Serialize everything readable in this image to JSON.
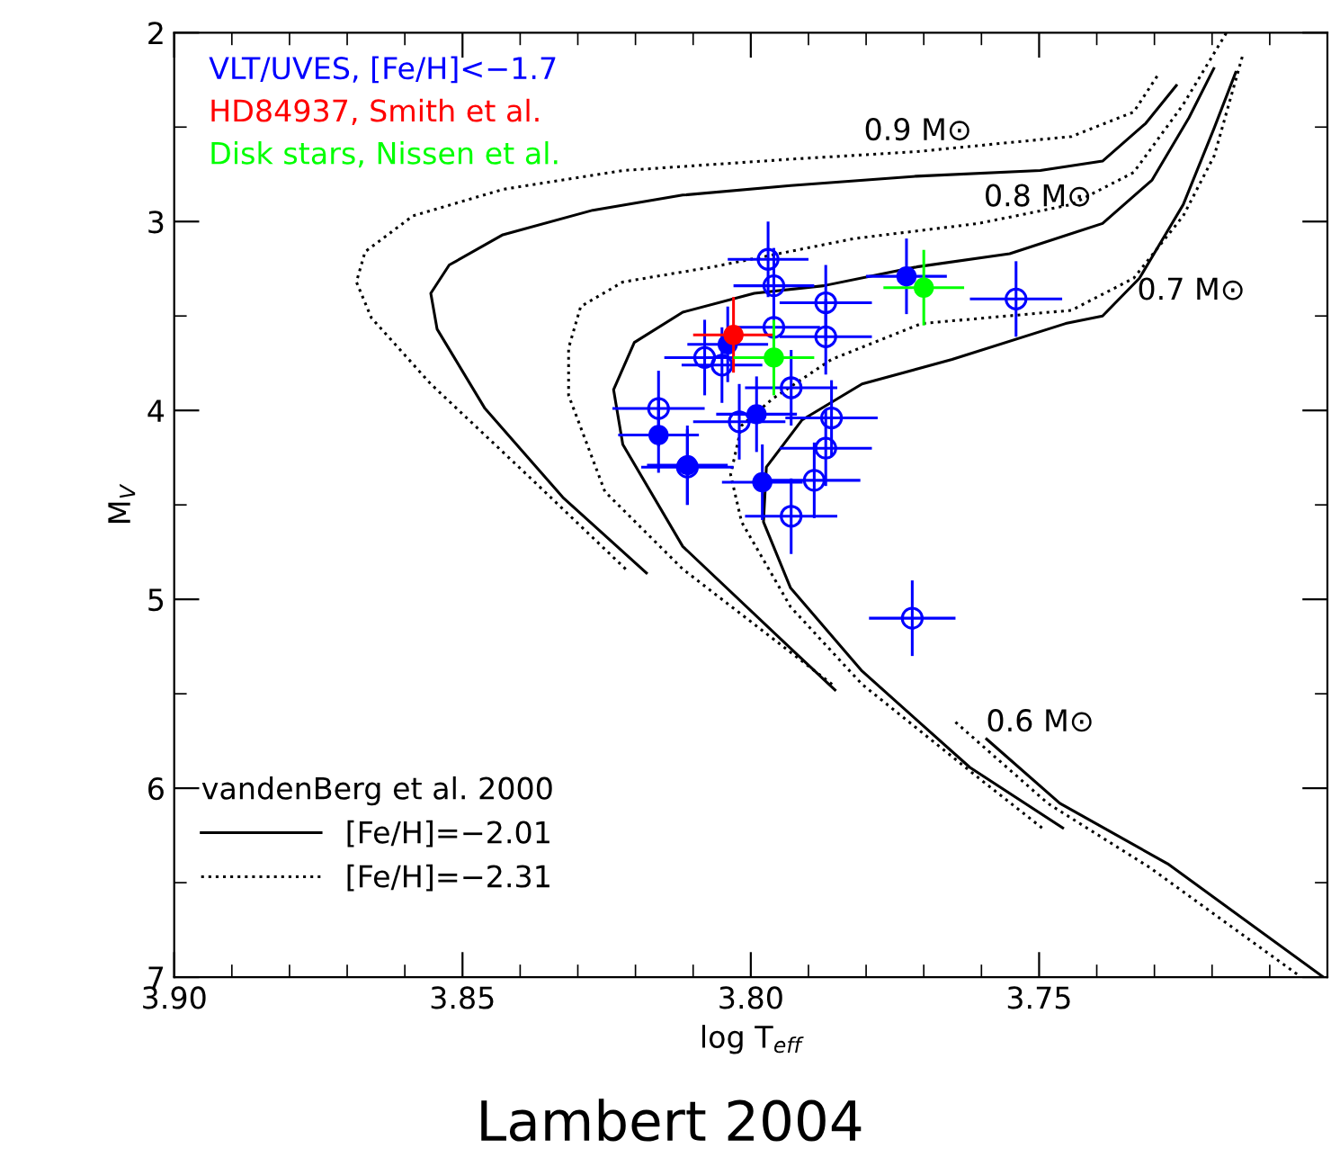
{
  "chart_data": {
    "type": "scatter",
    "xlabel": "log T$_{eff}$",
    "ylabel": "M$_{V}$",
    "xlim": [
      3.9,
      3.7
    ],
    "ylim": [
      7,
      2
    ],
    "xticks": [
      {
        "value": 3.9,
        "label": "3.90"
      },
      {
        "value": 3.85,
        "label": "3.85"
      },
      {
        "value": 3.8,
        "label": "3.80"
      },
      {
        "value": 3.75,
        "label": "3.75"
      }
    ],
    "yticks": [
      2,
      3,
      4,
      5,
      6,
      7
    ],
    "legend": "bottom left",
    "legend_title": "vandenBerg et al. 2000",
    "annotations": [
      "0.9 M⊙",
      "0.8 M⊙",
      "0.7 M⊙",
      "0.6 M⊙",
      "Lambert 2004"
    ],
    "series": [
      {
        "type": "line",
        "name": "[Fe/H]=−2.01",
        "color": "#000000",
        "line_style": "solid",
        "x": [
          3.8181,
          3.8326,
          3.8461,
          3.8544,
          3.8555,
          3.8523,
          3.843,
          3.8274,
          3.8118,
          3.7931,
          3.7713,
          3.7498,
          3.739,
          3.7315,
          3.7262,
          null,
          3.7854,
          3.7931,
          3.8118,
          3.8222,
          3.8238,
          3.8202,
          3.8118,
          3.7994,
          3.7874,
          3.7712,
          3.7551,
          3.739,
          3.7304,
          3.724,
          3.7197,
          null,
          3.7459,
          3.762,
          3.7807,
          3.7931,
          3.7978,
          3.7973,
          3.7911,
          3.7807,
          3.7651,
          3.7454,
          3.739,
          3.7326,
          3.725,
          3.7197,
          3.7159,
          null,
          3.7591,
          3.7464,
          3.7277,
          3.7007
        ],
        "values": [
          4.86,
          4.46,
          3.99,
          3.57,
          3.38,
          3.23,
          3.07,
          2.94,
          2.86,
          2.81,
          2.76,
          2.73,
          2.68,
          2.48,
          2.28,
          null,
          5.48,
          5.26,
          4.72,
          4.18,
          3.89,
          3.64,
          3.48,
          3.38,
          3.34,
          3.24,
          3.17,
          3.01,
          2.78,
          2.45,
          2.19,
          null,
          6.21,
          5.89,
          5.38,
          4.94,
          4.59,
          4.3,
          4.05,
          3.86,
          3.73,
          3.54,
          3.5,
          3.3,
          2.91,
          2.51,
          2.21,
          null,
          5.74,
          6.08,
          6.4,
          7.0
        ]
      },
      {
        "type": "line",
        "name": "[Fe/H]=−2.31",
        "color": "#000000",
        "line_style": "dotted",
        "x": [
          3.8217,
          3.8378,
          3.8555,
          3.8658,
          3.8684,
          3.8669,
          3.8586,
          3.843,
          3.8222,
          3.7931,
          3.7713,
          3.7444,
          3.7336,
          3.7293,
          null,
          3.7859,
          3.8118,
          3.8253,
          3.8316,
          3.8316,
          3.8295,
          3.8222,
          3.8066,
          3.782,
          3.7605,
          3.7444,
          3.7336,
          3.725,
          3.7175,
          null,
          3.7495,
          3.7599,
          3.7807,
          3.7931,
          3.8016,
          3.8035,
          3.8016,
          3.7963,
          3.786,
          3.7704,
          3.7444,
          3.7336,
          3.725,
          3.7196,
          3.7146,
          null,
          3.7645,
          3.7485,
          3.7308,
          3.705
        ],
        "values": [
          4.84,
          4.37,
          3.86,
          3.51,
          3.32,
          3.16,
          2.97,
          2.83,
          2.73,
          2.67,
          2.63,
          2.55,
          2.42,
          2.22,
          null,
          5.45,
          4.84,
          4.43,
          3.92,
          3.67,
          3.45,
          3.32,
          3.24,
          3.09,
          3.01,
          2.91,
          2.74,
          2.38,
          2.0,
          null,
          6.21,
          5.96,
          5.45,
          5.04,
          4.59,
          4.34,
          4.08,
          3.94,
          3.73,
          3.54,
          3.47,
          3.3,
          2.97,
          2.65,
          2.11,
          null,
          5.65,
          6.08,
          6.42,
          6.99
        ]
      },
      {
        "name": "VLT/UVES, [Fe/H]<−1.7",
        "color": "#0000ff",
        "marker": "open circle",
        "x": [
          3.797,
          3.796,
          3.787,
          3.796,
          3.787,
          3.808,
          3.805,
          3.793,
          3.816,
          3.802,
          3.786,
          3.787,
          3.811,
          3.789,
          3.793,
          3.754,
          3.772
        ],
        "values": [
          3.2,
          3.34,
          3.43,
          3.56,
          3.61,
          3.72,
          3.76,
          3.88,
          3.99,
          4.06,
          4.04,
          4.2,
          4.3,
          4.37,
          4.56,
          3.41,
          5.1
        ],
        "xerrors": [
          0.007,
          0.007,
          0.008,
          0.008,
          0.008,
          0.007,
          0.007,
          0.008,
          0.008,
          0.008,
          0.008,
          0.008,
          0.008,
          0.008,
          0.008,
          0.008,
          0.0075
        ],
        "errors": [
          0.2,
          0.2,
          0.2,
          0.2,
          0.2,
          0.2,
          0.2,
          0.2,
          0.2,
          0.2,
          0.2,
          0.2,
          0.2,
          0.2,
          0.2,
          0.2,
          0.2
        ]
      },
      {
        "color": "#0000ff",
        "marker": "circle",
        "x": [
          3.773,
          3.804,
          3.799,
          3.816,
          3.811,
          3.798
        ],
        "values": [
          3.29,
          3.65,
          4.02,
          4.13,
          4.29,
          4.38
        ],
        "xerrors": [
          0.007,
          0.007,
          0.007,
          0.007,
          0.007,
          0.007
        ],
        "errors": [
          0.2,
          0.2,
          0.2,
          0.2,
          0.21,
          0.2
        ]
      },
      {
        "name": "HD84937, Smith et al.",
        "color": "#ff0000",
        "marker": "circle",
        "x": [
          3.803
        ],
        "values": [
          3.6
        ],
        "xerrors": [
          0.007
        ],
        "errors": [
          0.2
        ]
      },
      {
        "name": "Disk stars, Nissen et al.",
        "color": "#00ff00",
        "marker": "circle",
        "x": [
          3.77,
          3.796
        ],
        "values": [
          3.35,
          3.72
        ],
        "xerrors": [
          0.007,
          0.007
        ],
        "errors": [
          0.2,
          0.2
        ]
      }
    ]
  }
}
